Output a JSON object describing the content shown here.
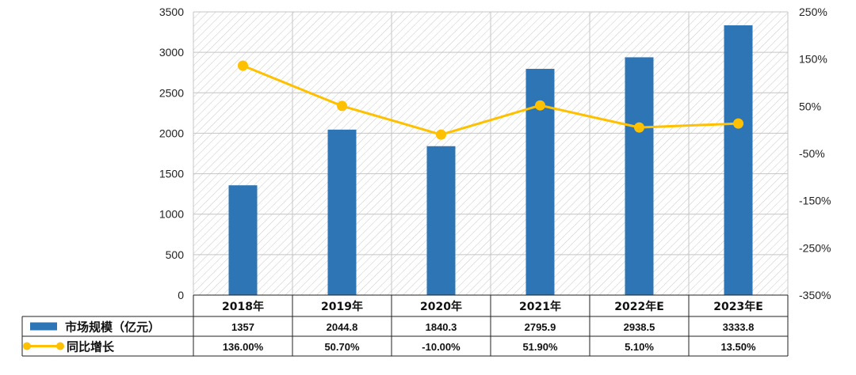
{
  "chart_data": {
    "type": "bar",
    "categories": [
      "2018年",
      "2019年",
      "2020年",
      "2021年",
      "2022年E",
      "2023年E"
    ],
    "series": [
      {
        "name": "市场规模（亿元）",
        "chart": "bar",
        "axis": "left",
        "color": "#2e75b6",
        "values": [
          1357,
          2044.8,
          1840.3,
          2795.9,
          2938.5,
          3333.8
        ],
        "labels": [
          "1357",
          "2044.8",
          "1840.3",
          "2795.9",
          "2938.5",
          "3333.8"
        ]
      },
      {
        "name": "同比增长",
        "chart": "line",
        "axis": "right",
        "color": "#ffc000",
        "values": [
          136.0,
          50.7,
          -10.0,
          51.9,
          5.1,
          13.5
        ],
        "labels": [
          "136.00%",
          "50.70%",
          "-10.00%",
          "51.90%",
          "5.10%",
          "13.50%"
        ]
      }
    ],
    "y_left": {
      "lim": [
        0,
        3500
      ],
      "ticks": [
        0,
        500,
        1000,
        1500,
        2000,
        2500,
        3000,
        3500
      ],
      "tick_labels": [
        "0",
        "500",
        "1000",
        "1500",
        "2000",
        "2500",
        "3000",
        "3500"
      ]
    },
    "y_right": {
      "lim": [
        -350,
        250
      ],
      "ticks": [
        -350,
        -250,
        -150,
        -50,
        50,
        150,
        250
      ],
      "tick_labels": [
        "-350%",
        "-250%",
        "-150%",
        "-50%",
        "50%",
        "150%",
        "250%"
      ]
    },
    "grid": true,
    "plot_background": "diagonal-hatch",
    "data_table": true,
    "legend": "data-table-left"
  }
}
